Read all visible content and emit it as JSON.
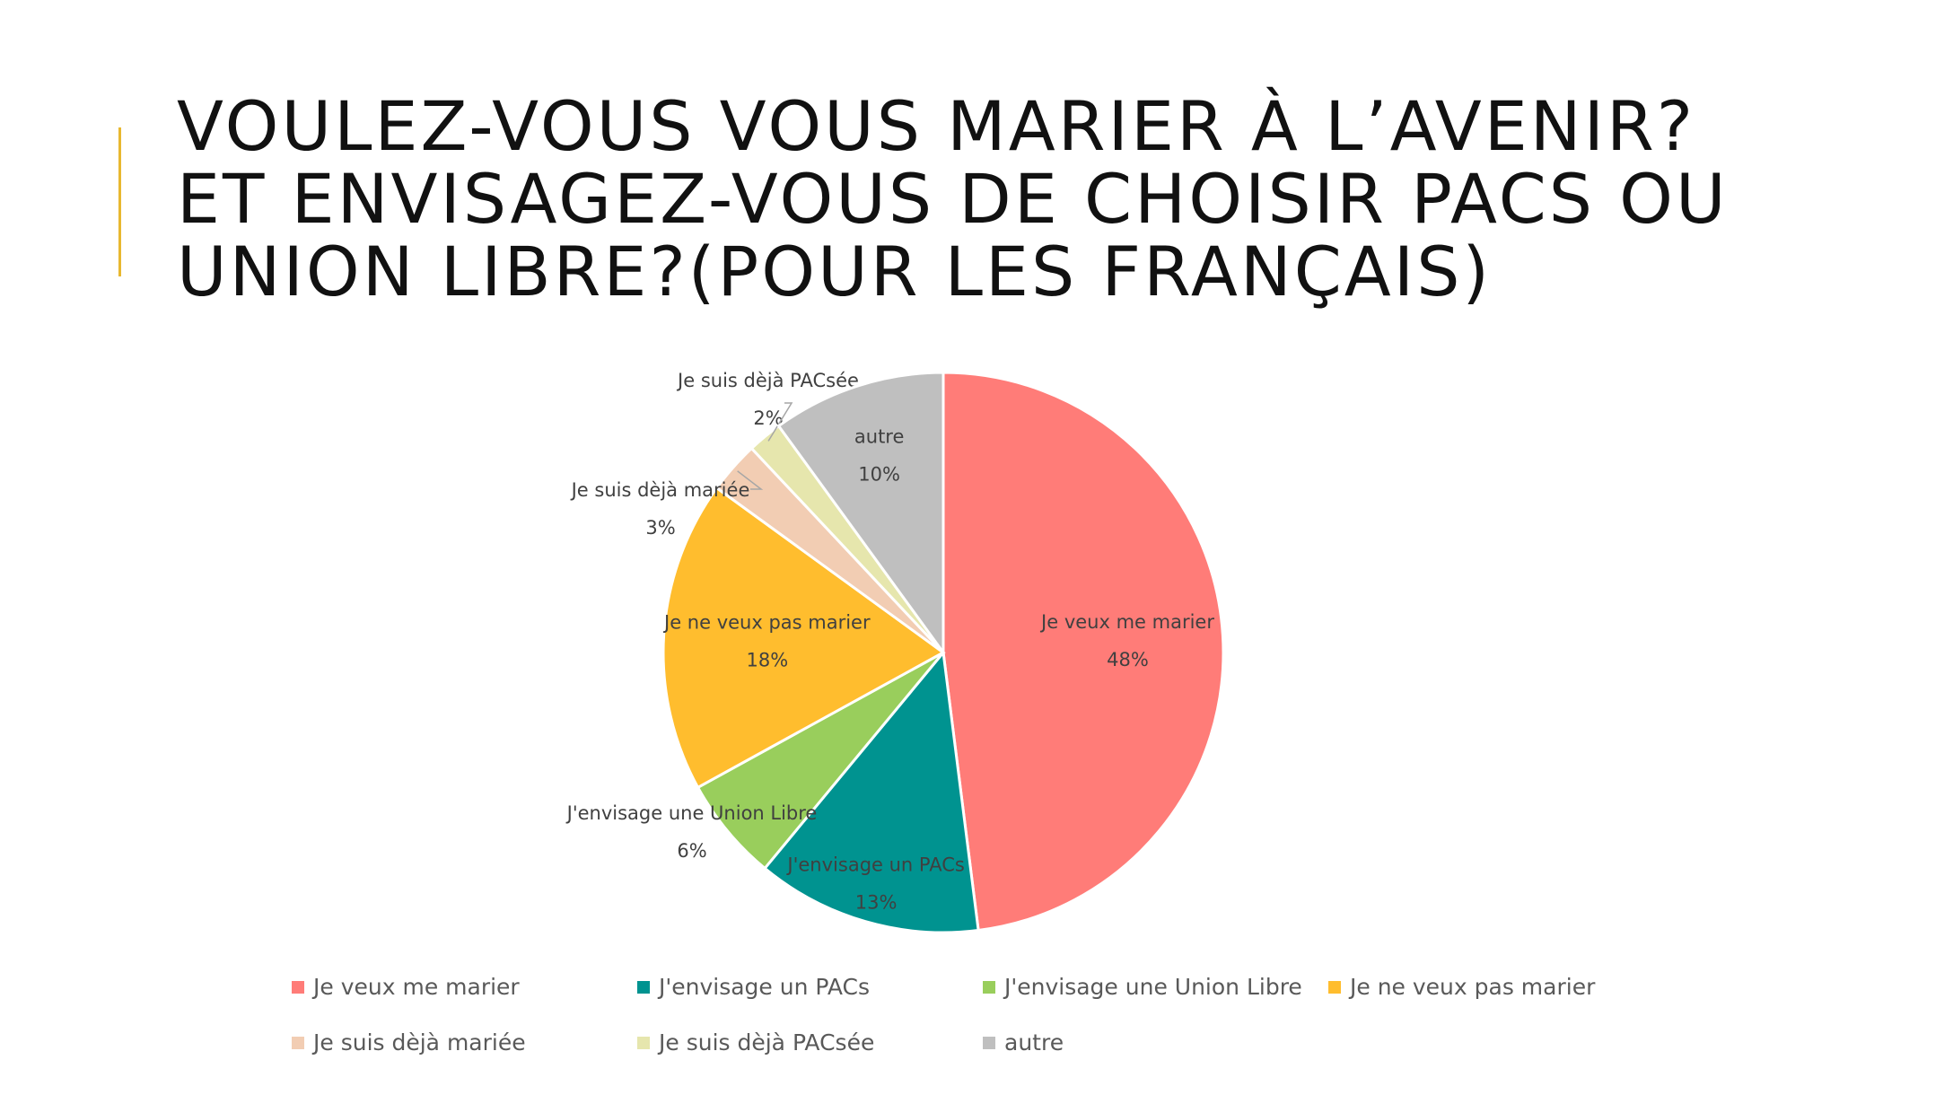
{
  "slide": {
    "title_lines": [
      "VOULEZ-VOUS VOUS MARIER À L’AVENIR?",
      "ET ENVISAGEZ-VOUS DE CHOISIR PACS OU",
      "UNION LIBRE?(POUR LES FRANÇAIS)"
    ],
    "accent_color": "#e8b830"
  },
  "chart_data": {
    "type": "pie",
    "title": "",
    "legend_position": "bottom",
    "start": "12 o'clock, clockwise",
    "slices": [
      {
        "label": "Je veux me marier",
        "value": 48,
        "display": "48%",
        "color": "#ff7c78"
      },
      {
        "label": "J'envisage un PACs",
        "value": 13,
        "display": "13%",
        "color": "#009390"
      },
      {
        "label": "J'envisage une Union Libre",
        "value": 6,
        "display": "6%",
        "color": "#99ce5c"
      },
      {
        "label": "Je ne veux pas marier",
        "value": 18,
        "display": "18%",
        "color": "#ffbd2e"
      },
      {
        "label": "Je suis dèjà mariée",
        "value": 3,
        "display": "3%",
        "color": "#f2cdb3"
      },
      {
        "label": "Je suis dèjà PACsée",
        "value": 2,
        "display": "2%",
        "color": "#e6e6ad"
      },
      {
        "label": "autre",
        "value": 10,
        "display": "10%",
        "color": "#bfbfbf"
      }
    ]
  }
}
